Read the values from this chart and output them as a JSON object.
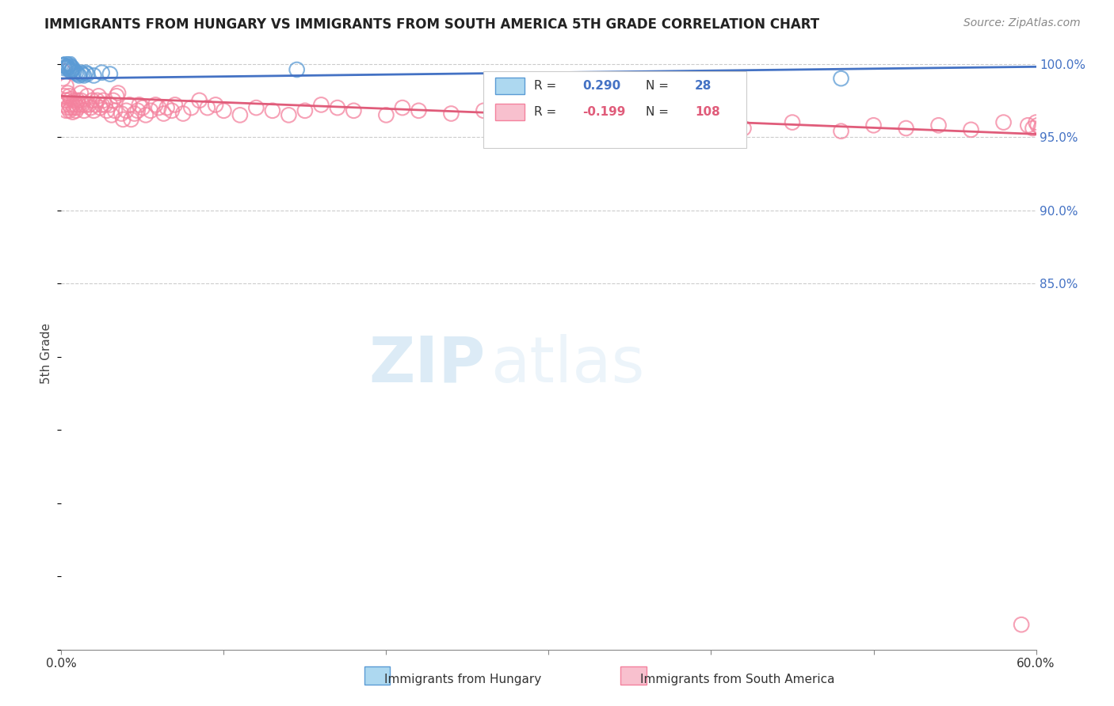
{
  "title": "IMMIGRANTS FROM HUNGARY VS IMMIGRANTS FROM SOUTH AMERICA 5TH GRADE CORRELATION CHART",
  "source": "Source: ZipAtlas.com",
  "ylabel": "5th Grade",
  "xlim": [
    0.0,
    0.6
  ],
  "ylim": [
    0.6,
    1.005
  ],
  "xticks": [
    0.0,
    0.1,
    0.2,
    0.3,
    0.4,
    0.5,
    0.6
  ],
  "xticklabels": [
    "0.0%",
    "",
    "",
    "",
    "",
    "",
    "60.0%"
  ],
  "yticks_right": [
    0.85,
    0.9,
    0.95,
    1.0
  ],
  "yticklabels_right": [
    "85.0%",
    "90.0%",
    "95.0%",
    "100.0%"
  ],
  "R_hungary": 0.29,
  "N_hungary": 28,
  "R_south_america": -0.199,
  "N_south_america": 108,
  "blue_color": "#5b9bd5",
  "pink_color": "#f4829e",
  "blue_line_color": "#4472c4",
  "pink_line_color": "#e05c7a",
  "blue_line_y0": 0.99,
  "blue_line_y1": 0.998,
  "pink_line_y0": 0.978,
  "pink_line_y1": 0.952,
  "hungary_x": [
    0.001,
    0.002,
    0.002,
    0.003,
    0.003,
    0.004,
    0.004,
    0.005,
    0.005,
    0.005,
    0.006,
    0.006,
    0.007,
    0.007,
    0.008,
    0.009,
    0.01,
    0.011,
    0.012,
    0.013,
    0.014,
    0.015,
    0.016,
    0.02,
    0.025,
    0.03,
    0.145,
    0.48
  ],
  "hungary_y": [
    0.999,
    0.997,
    0.999,
    0.998,
    1.0,
    0.997,
    0.998,
    0.999,
    0.996,
    1.0,
    0.995,
    0.998,
    0.997,
    0.996,
    0.995,
    0.994,
    0.993,
    0.992,
    0.994,
    0.993,
    0.992,
    0.994,
    0.993,
    0.992,
    0.994,
    0.993,
    0.996,
    0.99
  ],
  "south_america_x": [
    0.001,
    0.001,
    0.002,
    0.002,
    0.003,
    0.003,
    0.003,
    0.004,
    0.004,
    0.005,
    0.005,
    0.005,
    0.006,
    0.006,
    0.007,
    0.007,
    0.008,
    0.008,
    0.009,
    0.009,
    0.01,
    0.01,
    0.011,
    0.012,
    0.012,
    0.013,
    0.014,
    0.015,
    0.016,
    0.017,
    0.018,
    0.019,
    0.02,
    0.021,
    0.022,
    0.023,
    0.024,
    0.025,
    0.026,
    0.027,
    0.028,
    0.03,
    0.031,
    0.032,
    0.033,
    0.034,
    0.035,
    0.037,
    0.038,
    0.04,
    0.042,
    0.043,
    0.045,
    0.047,
    0.048,
    0.05,
    0.052,
    0.055,
    0.058,
    0.06,
    0.063,
    0.065,
    0.068,
    0.07,
    0.075,
    0.08,
    0.085,
    0.09,
    0.095,
    0.1,
    0.11,
    0.12,
    0.13,
    0.14,
    0.15,
    0.16,
    0.17,
    0.18,
    0.2,
    0.21,
    0.22,
    0.24,
    0.26,
    0.28,
    0.3,
    0.32,
    0.35,
    0.38,
    0.4,
    0.42,
    0.45,
    0.48,
    0.5,
    0.52,
    0.54,
    0.56,
    0.58,
    0.591,
    0.595,
    0.598,
    0.6,
    0.601,
    0.603,
    0.605,
    0.606,
    0.607,
    0.608,
    0.609
  ],
  "south_america_y": [
    0.995,
    0.99,
    0.978,
    0.972,
    0.985,
    0.975,
    0.968,
    0.98,
    0.97,
    0.978,
    0.972,
    0.968,
    0.976,
    0.97,
    0.972,
    0.967,
    0.975,
    0.97,
    0.968,
    0.972,
    0.975,
    0.97,
    0.972,
    0.975,
    0.98,
    0.972,
    0.968,
    0.972,
    0.978,
    0.972,
    0.97,
    0.975,
    0.968,
    0.972,
    0.975,
    0.978,
    0.97,
    0.972,
    0.975,
    0.972,
    0.968,
    0.972,
    0.965,
    0.975,
    0.968,
    0.978,
    0.98,
    0.966,
    0.962,
    0.968,
    0.972,
    0.962,
    0.966,
    0.968,
    0.972,
    0.97,
    0.965,
    0.968,
    0.972,
    0.97,
    0.966,
    0.97,
    0.968,
    0.972,
    0.966,
    0.97,
    0.975,
    0.97,
    0.972,
    0.968,
    0.965,
    0.97,
    0.968,
    0.965,
    0.968,
    0.972,
    0.97,
    0.968,
    0.965,
    0.97,
    0.968,
    0.966,
    0.968,
    0.965,
    0.962,
    0.959,
    0.962,
    0.958,
    0.962,
    0.956,
    0.96,
    0.954,
    0.958,
    0.956,
    0.958,
    0.955,
    0.96,
    0.617,
    0.958,
    0.956,
    0.96,
    0.958,
    0.956,
    0.96,
    0.958,
    0.955,
    0.96,
    0.958
  ]
}
